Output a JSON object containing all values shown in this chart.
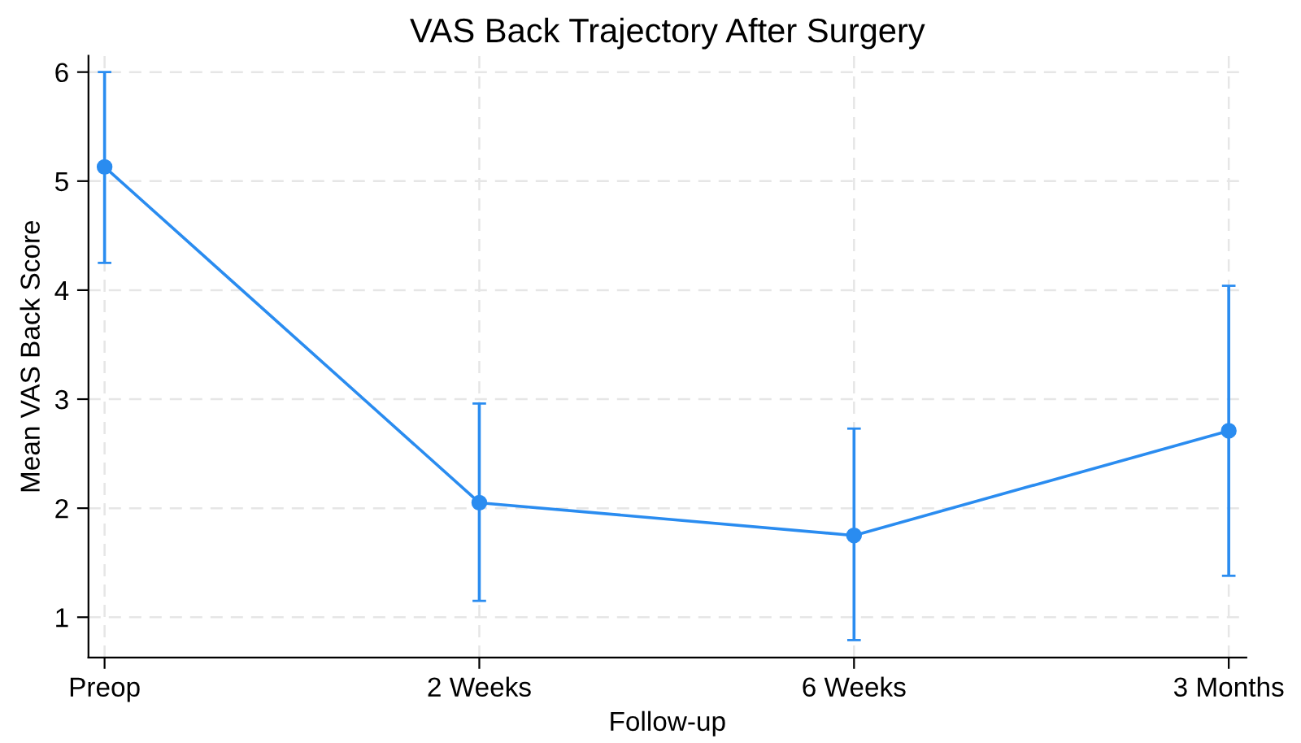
{
  "chart_data": {
    "type": "line",
    "title": "VAS Back Trajectory After Surgery",
    "xlabel": "Follow-up",
    "ylabel": "Mean VAS Back Score",
    "categories": [
      "Preop",
      "2 Weeks",
      "6 Weeks",
      "3 Months"
    ],
    "series": [
      {
        "color": "#2a8cf0",
        "values": [
          5.13,
          2.05,
          1.75,
          2.71
        ],
        "errors": [
          [
            4.25,
            6.0
          ],
          [
            1.15,
            2.96
          ],
          [
            0.79,
            2.73
          ],
          [
            1.38,
            4.04
          ]
        ]
      }
    ],
    "ylim": [
      0.63,
      6.15
    ],
    "yticks": [
      1,
      2,
      3,
      4,
      5,
      6
    ],
    "grid": true,
    "marker": "circle",
    "line_style": "solid"
  }
}
